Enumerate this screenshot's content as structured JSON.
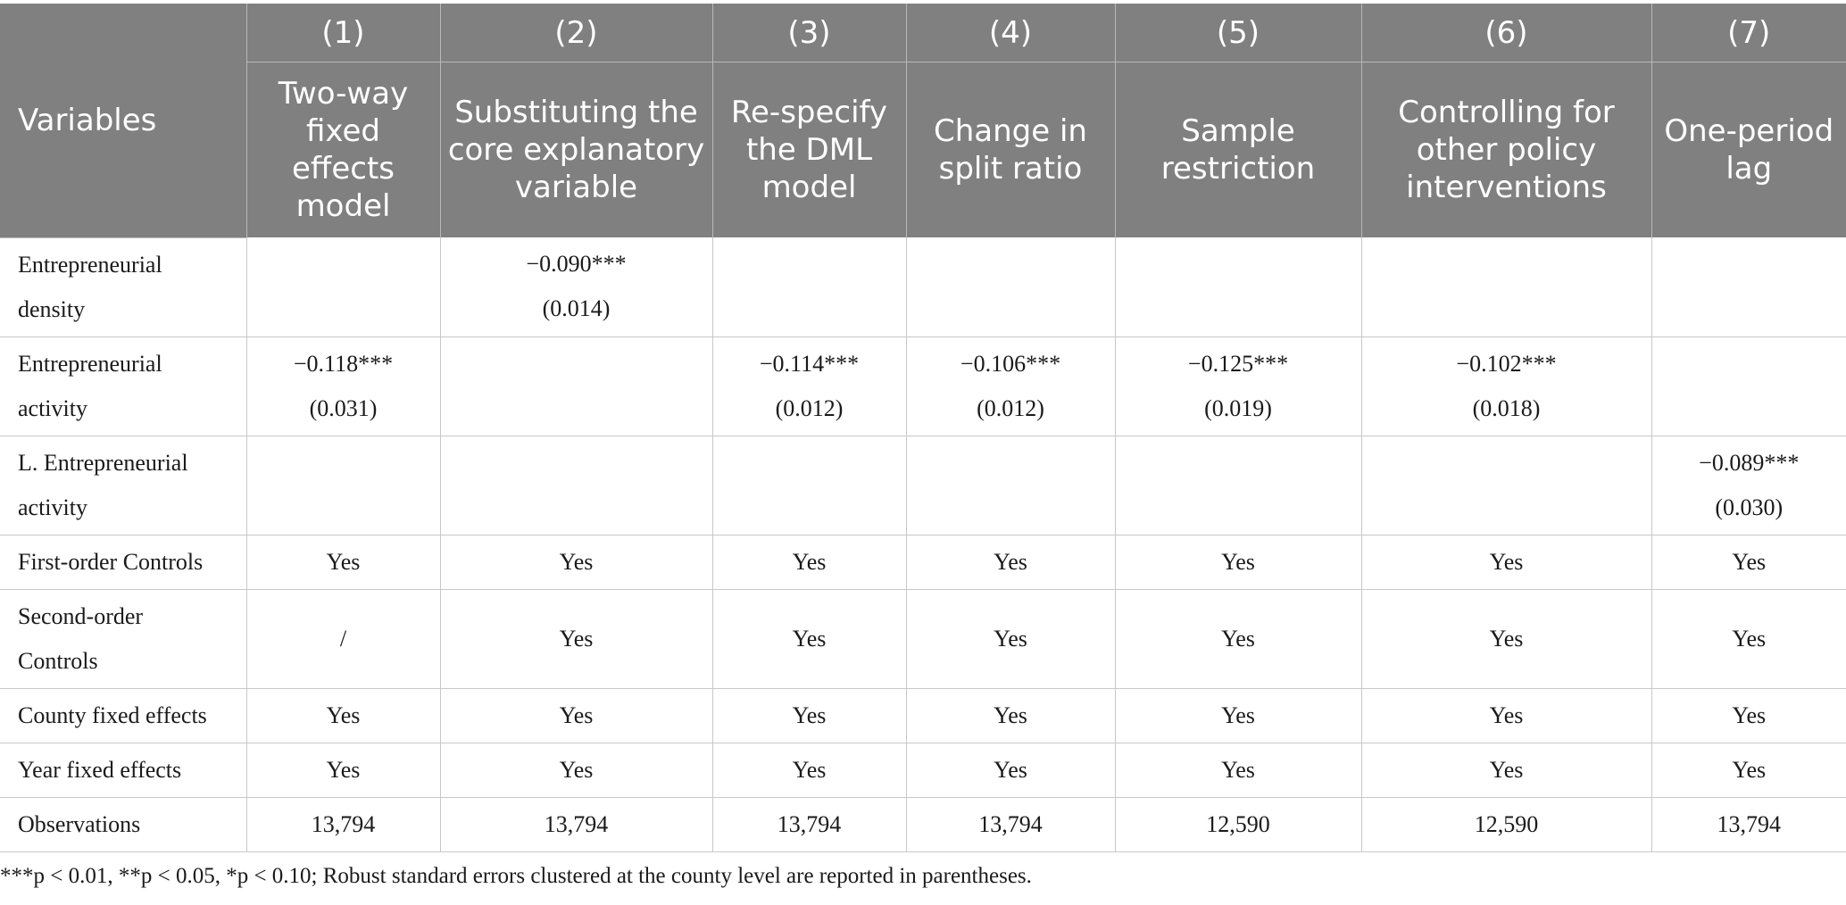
{
  "table": {
    "variables_label": "Variables",
    "columns": [
      {
        "num": "(1)",
        "desc": "Two-way fixed effects model"
      },
      {
        "num": "(2)",
        "desc": "Substituting the core explanatory variable"
      },
      {
        "num": "(3)",
        "desc": "Re-specify the DML model"
      },
      {
        "num": "(4)",
        "desc": "Change in split ratio"
      },
      {
        "num": "(5)",
        "desc": "Sample restriction"
      },
      {
        "num": "(6)",
        "desc": "Controlling for other policy interventions"
      },
      {
        "num": "(7)",
        "desc": "One-period lag"
      }
    ],
    "rows": [
      {
        "label": [
          "Entrepreneurial",
          "density"
        ],
        "size": "tall",
        "cells": [
          [],
          [
            "−0.090***",
            "(0.014)"
          ],
          [],
          [],
          [],
          [],
          []
        ]
      },
      {
        "label": [
          "Entrepreneurial",
          "activity"
        ],
        "size": "tall",
        "cells": [
          [
            "−0.118***",
            "(0.031)"
          ],
          [],
          [
            "−0.114***",
            "(0.012)"
          ],
          [
            "−0.106***",
            "(0.012)"
          ],
          [
            "−0.125***",
            "(0.019)"
          ],
          [
            "−0.102***",
            "(0.018)"
          ],
          []
        ]
      },
      {
        "label": [
          "L. Entrepreneurial",
          "activity"
        ],
        "size": "tall",
        "cells": [
          [],
          [],
          [],
          [],
          [],
          [],
          [
            "−0.089***",
            "(0.030)"
          ]
        ]
      },
      {
        "label": [
          "First-order Controls"
        ],
        "size": "short",
        "cells": [
          [
            "Yes"
          ],
          [
            "Yes"
          ],
          [
            "Yes"
          ],
          [
            "Yes"
          ],
          [
            "Yes"
          ],
          [
            "Yes"
          ],
          [
            "Yes"
          ]
        ]
      },
      {
        "label": [
          "Second-order",
          "Controls"
        ],
        "size": "tall",
        "cells": [
          [
            "/"
          ],
          [
            "Yes"
          ],
          [
            "Yes"
          ],
          [
            "Yes"
          ],
          [
            "Yes"
          ],
          [
            "Yes"
          ],
          [
            "Yes"
          ]
        ]
      },
      {
        "label": [
          "County fixed effects"
        ],
        "size": "short",
        "cells": [
          [
            "Yes"
          ],
          [
            "Yes"
          ],
          [
            "Yes"
          ],
          [
            "Yes"
          ],
          [
            "Yes"
          ],
          [
            "Yes"
          ],
          [
            "Yes"
          ]
        ]
      },
      {
        "label": [
          "Year fixed effects"
        ],
        "size": "short",
        "cells": [
          [
            "Yes"
          ],
          [
            "Yes"
          ],
          [
            "Yes"
          ],
          [
            "Yes"
          ],
          [
            "Yes"
          ],
          [
            "Yes"
          ],
          [
            "Yes"
          ]
        ]
      },
      {
        "label": [
          "Observations"
        ],
        "size": "short",
        "cells": [
          [
            "13,794"
          ],
          [
            "13,794"
          ],
          [
            "13,794"
          ],
          [
            "13,794"
          ],
          [
            "12,590"
          ],
          [
            "12,590"
          ],
          [
            "13,794"
          ]
        ]
      }
    ]
  },
  "note": "***p < 0.01, **p < 0.05, *p < 0.10; Robust standard errors clustered at the county level are reported in parentheses.",
  "colors": {
    "header_bg": "#808080",
    "header_text": "#ffffff",
    "grid": "#c8c8c8"
  }
}
